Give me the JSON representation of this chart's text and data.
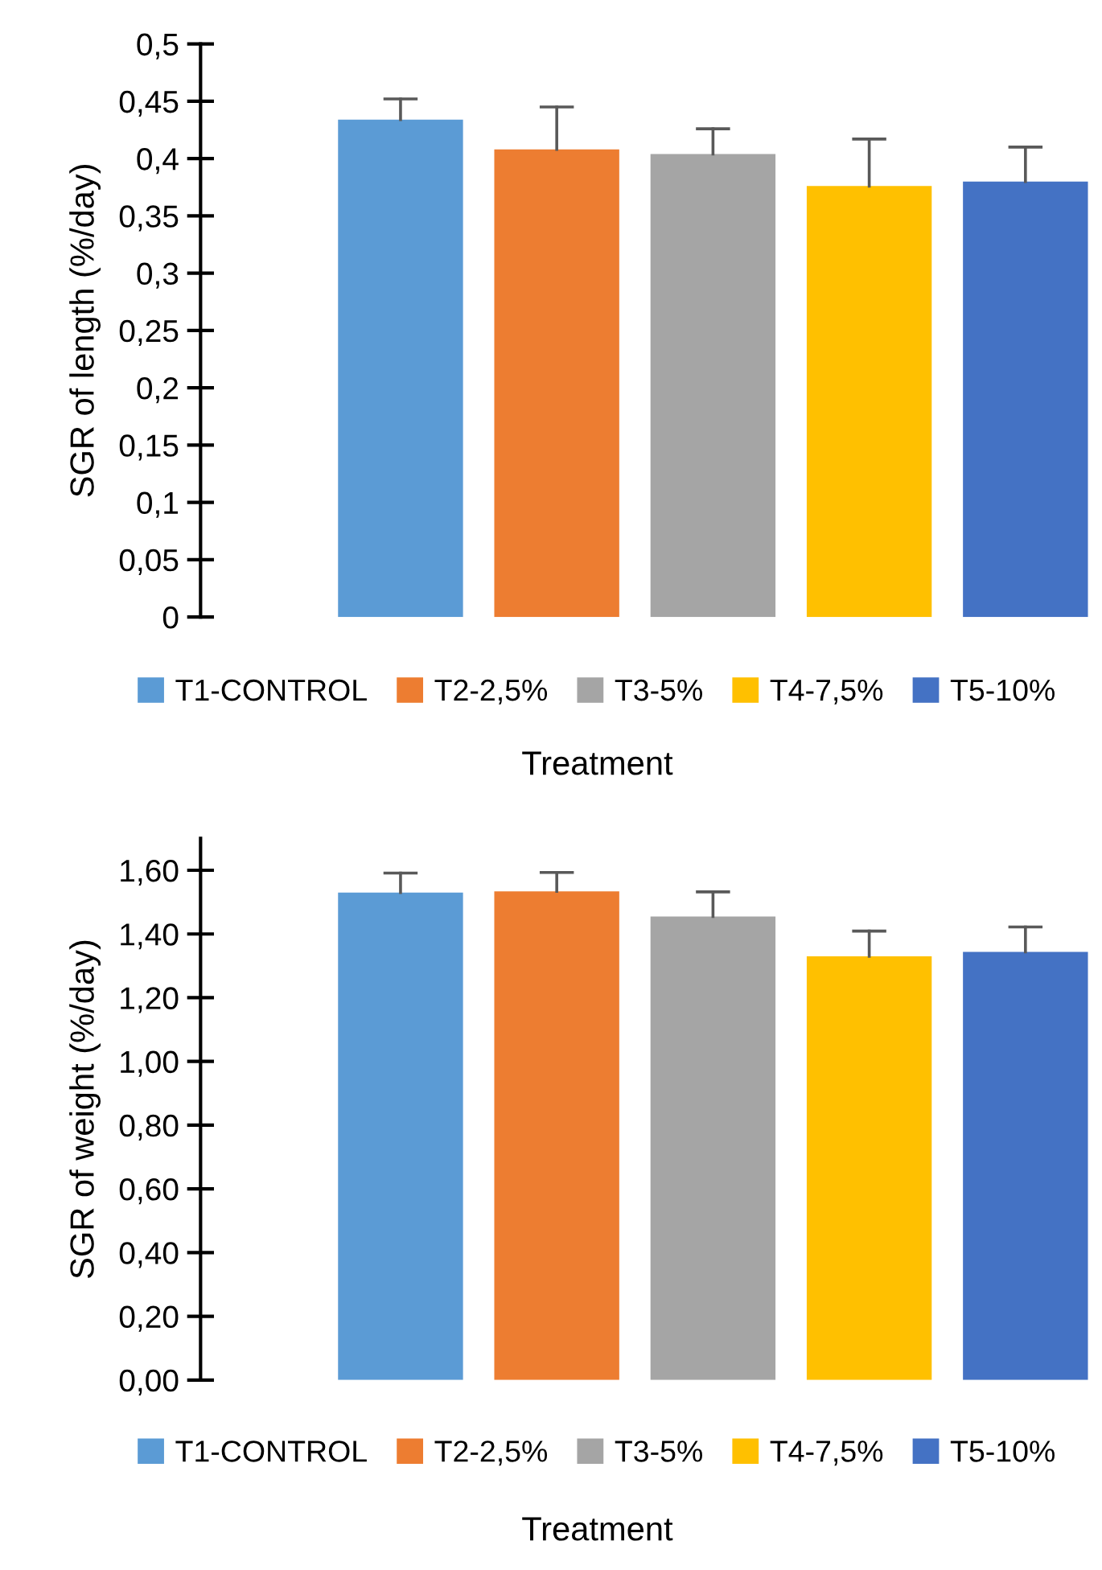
{
  "chart_data": [
    {
      "type": "bar",
      "ylabel": "SGR of length (%/day)",
      "xlabel": "Treatment",
      "categories": [
        null,
        null,
        null,
        null,
        null
      ],
      "stacked": true,
      "legend": "bottom",
      "grid": false,
      "ylim": [
        0,
        0.5
      ],
      "yticks": [
        0,
        {
          "value": 0.05,
          "label": "0,05"
        },
        {
          "value": 0.1,
          "label": "0,1"
        },
        {
          "value": 0.15,
          "label": "0,15"
        },
        {
          "value": 0.2,
          "label": "0,2"
        },
        {
          "value": 0.25,
          "label": "0,25"
        },
        {
          "value": 0.3,
          "label": "0,3"
        },
        {
          "value": 0.35,
          "label": "0,35"
        },
        {
          "value": 0.4,
          "label": "0,4"
        },
        {
          "value": 0.45,
          "label": "0,45"
        },
        {
          "value": 0.5,
          "label": "0,5"
        }
      ],
      "series": [
        {
          "name": "T1-CONTROL",
          "color": "#5b9bd5",
          "values": [
            0.434,
            null,
            null,
            null,
            null
          ],
          "errors": [
            [
              0.434,
              0.452
            ],
            null,
            null,
            null,
            null
          ]
        },
        {
          "name": "T2-2,5%",
          "color": "#ed7d31",
          "values": [
            null,
            0.408,
            null,
            null,
            null
          ],
          "errors": [
            null,
            [
              0.408,
              0.445
            ],
            null,
            null,
            null
          ]
        },
        {
          "name": "T3-5%",
          "color": "#a5a5a5",
          "values": [
            null,
            null,
            0.404,
            null,
            null
          ],
          "errors": [
            null,
            null,
            [
              0.404,
              0.426
            ],
            null,
            null
          ]
        },
        {
          "name": "T4-7,5%",
          "color": "#ffc000",
          "values": [
            null,
            null,
            null,
            0.376,
            null
          ],
          "errors": [
            null,
            null,
            null,
            [
              0.376,
              0.417
            ],
            null
          ]
        },
        {
          "name": "T5-10%",
          "color": "#4472c4",
          "values": [
            null,
            null,
            null,
            null,
            0.38
          ],
          "errors": [
            null,
            null,
            null,
            null,
            [
              0.38,
              0.41
            ]
          ]
        }
      ]
    },
    {
      "type": "bar",
      "ylabel": "SGR of weight (%/day)",
      "xlabel": "Treatment",
      "categories": [
        null,
        null,
        null,
        null,
        null
      ],
      "stacked": true,
      "legend": "bottom",
      "grid": false,
      "ylim": [
        0,
        1.7
      ],
      "yticks": [
        {
          "value": 0,
          "label": "0,00"
        },
        {
          "value": 0.2,
          "label": "0,20"
        },
        {
          "value": 0.4,
          "label": "0,40"
        },
        {
          "value": 0.6,
          "label": "0,60"
        },
        {
          "value": 0.8,
          "label": "0,80"
        },
        {
          "value": 1.0,
          "label": "1,00"
        },
        {
          "value": 1.2,
          "label": "1,20"
        },
        {
          "value": 1.4,
          "label": "1,40"
        },
        {
          "value": 1.6,
          "label": "1,60"
        }
      ],
      "series": [
        {
          "name": "T1-CONTROL",
          "color": "#5b9bd5",
          "values": [
            1.53,
            null,
            null,
            null,
            null
          ],
          "errors": [
            [
              1.53,
              1.591
            ],
            null,
            null,
            null,
            null
          ]
        },
        {
          "name": "T2-2,5%",
          "color": "#ed7d31",
          "values": [
            null,
            1.534,
            null,
            null,
            null
          ],
          "errors": [
            null,
            [
              1.534,
              1.593
            ],
            null,
            null,
            null
          ]
        },
        {
          "name": "T3-5%",
          "color": "#a5a5a5",
          "values": [
            null,
            null,
            1.455,
            null,
            null
          ],
          "errors": [
            null,
            null,
            [
              1.455,
              1.532
            ],
            null,
            null
          ]
        },
        {
          "name": "T4-7,5%",
          "color": "#ffc000",
          "values": [
            null,
            null,
            null,
            1.33,
            null
          ],
          "errors": [
            null,
            null,
            null,
            [
              1.33,
              1.409
            ],
            null
          ]
        },
        {
          "name": "T5-10%",
          "color": "#4472c4",
          "values": [
            null,
            null,
            null,
            null,
            1.344
          ],
          "errors": [
            null,
            null,
            null,
            null,
            [
              1.344,
              1.422
            ]
          ]
        }
      ]
    }
  ]
}
